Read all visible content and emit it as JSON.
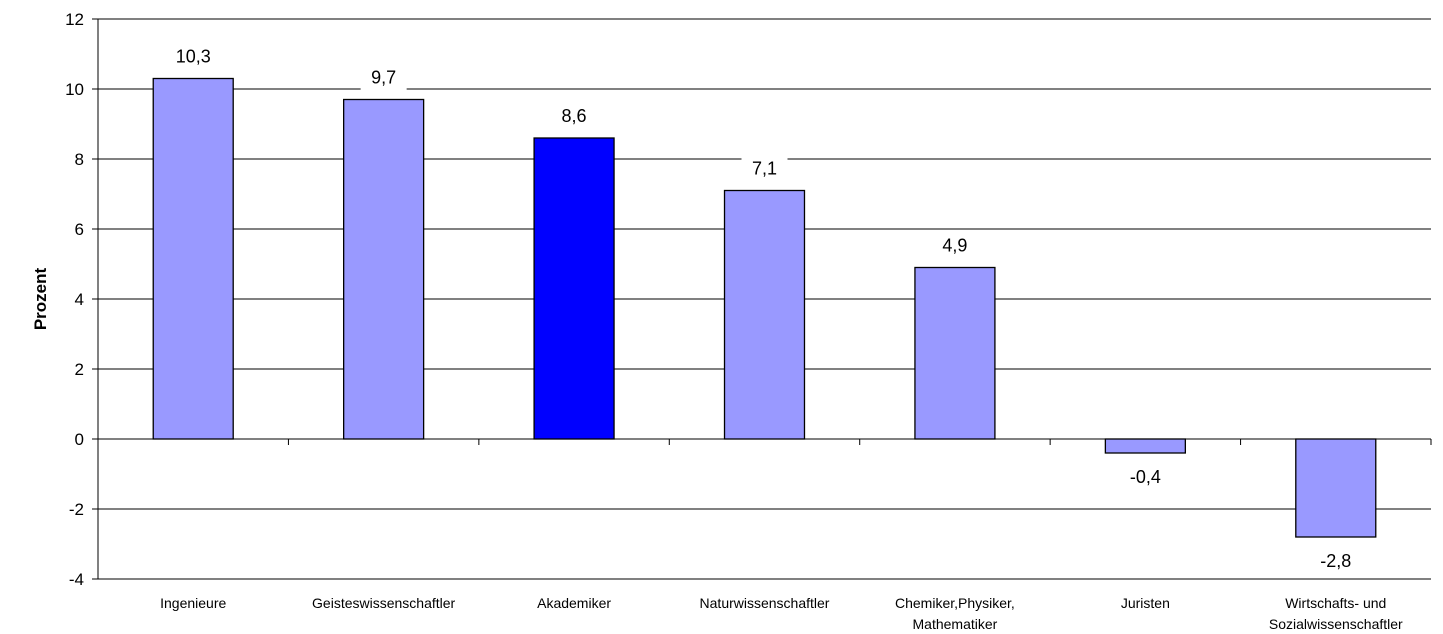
{
  "chart_data": {
    "type": "bar",
    "title": "",
    "xlabel": "",
    "ylabel": "Prozent",
    "ylim": [
      -4,
      12
    ],
    "yticks": [
      -4,
      -2,
      0,
      2,
      4,
      6,
      8,
      10,
      12
    ],
    "grid": true,
    "categories": [
      [
        "Ingenieure"
      ],
      [
        "Geisteswissenschaftler"
      ],
      [
        "Akademiker"
      ],
      [
        "Naturwissenschaftler"
      ],
      [
        "Chemiker,Physiker,",
        "Mathematiker"
      ],
      [
        "Juristen"
      ],
      [
        "Wirtschafts- und",
        "Sozialwissenschaftler"
      ]
    ],
    "values": [
      10.3,
      9.7,
      8.6,
      7.1,
      4.9,
      -0.4,
      -2.8
    ],
    "value_labels": [
      "10,3",
      "9,7",
      "8,6",
      "7,1",
      "4,9",
      "-0,4",
      "-2,8"
    ],
    "colors": {
      "default_bar": "#9999ff",
      "highlight_bar": "#0000ff",
      "highlight_index": 2,
      "bar_stroke": "#000000",
      "grid": "#000000"
    }
  }
}
